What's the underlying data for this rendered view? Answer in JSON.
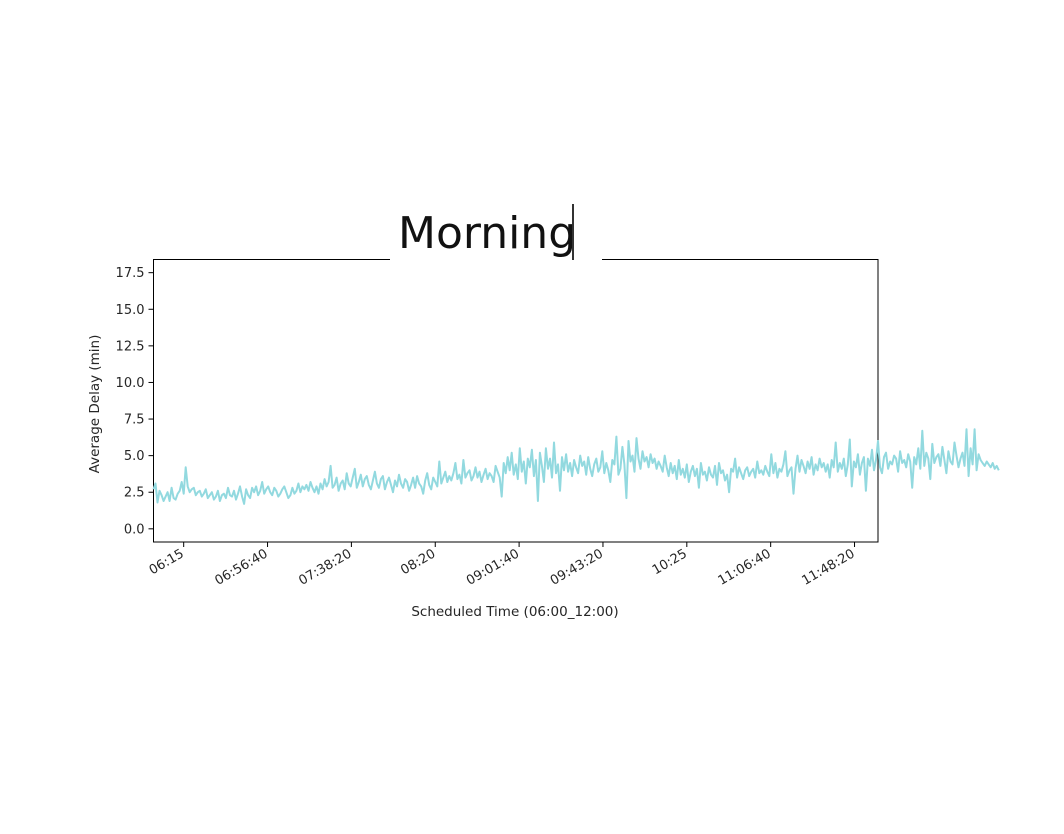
{
  "title_editor": {
    "text": "Morning"
  },
  "chart_data": {
    "type": "line",
    "title": "Morning",
    "xlabel": "Scheduled Time (06:00_12:00)",
    "ylabel": "Average Delay (min)",
    "xlim": [
      "06:00",
      "12:00"
    ],
    "ylim": [
      -0.9,
      18.4
    ],
    "x_ticks": [
      "06:15",
      "06:56:40",
      "07:38:20",
      "08:20",
      "09:01:40",
      "09:43:20",
      "10:25",
      "11:06:40",
      "11:48:20"
    ],
    "y_ticks": [
      "0.0",
      "2.5",
      "5.0",
      "7.5",
      "10.0",
      "12.5",
      "15.0",
      "17.5"
    ],
    "line_color": "#92d9df",
    "grid": false,
    "x_interval_minutes": 1,
    "series": [
      {
        "values": [
          2.7,
          3.1,
          1.8,
          2.6,
          2.3,
          1.9,
          2.2,
          2.5,
          1.9,
          2.8,
          2.1,
          2.0,
          2.4,
          2.6,
          3.2,
          2.4,
          4.2,
          2.9,
          2.5,
          2.7,
          2.8,
          2.3,
          2.5,
          2.6,
          2.2,
          2.4,
          2.7,
          2.1,
          2.3,
          2.5,
          2.0,
          2.2,
          2.6,
          1.9,
          2.3,
          2.4,
          2.1,
          2.8,
          2.3,
          2.2,
          2.6,
          2.0,
          2.4,
          2.9,
          2.2,
          1.7,
          2.7,
          2.3,
          2.1,
          2.8,
          2.5,
          2.9,
          2.3,
          2.6,
          3.2,
          2.4,
          2.7,
          2.9,
          2.5,
          2.3,
          2.8,
          2.6,
          2.2,
          2.4,
          2.7,
          2.9,
          2.5,
          2.1,
          2.3,
          2.8,
          2.4,
          2.6,
          3.1,
          2.5,
          2.9,
          2.7,
          3.0,
          2.6,
          3.2,
          2.8,
          2.5,
          2.9,
          2.4,
          3.1,
          2.7,
          3.4,
          2.9,
          3.2,
          4.3,
          2.8,
          3.0,
          3.5,
          2.6,
          3.1,
          3.3,
          2.7,
          3.8,
          3.1,
          2.9,
          3.5,
          4.1,
          2.8,
          3.2,
          3.7,
          2.9,
          3.4,
          3.6,
          3.0,
          2.7,
          3.3,
          3.9,
          3.1,
          2.8,
          3.4,
          3.6,
          2.7,
          3.2,
          3.5,
          3.0,
          2.5,
          3.3,
          2.9,
          3.7,
          3.1,
          2.8,
          3.4,
          3.2,
          2.6,
          3.0,
          3.5,
          2.8,
          3.6,
          3.1,
          2.9,
          2.4,
          3.3,
          3.8,
          3.0,
          2.7,
          3.5,
          3.2,
          2.9,
          4.6,
          3.1,
          3.5,
          3.9,
          3.2,
          3.6,
          3.3,
          3.8,
          4.5,
          3.4,
          3.7,
          3.1,
          4.7,
          3.5,
          3.8,
          4.0,
          3.3,
          3.6,
          4.2,
          3.5,
          3.9,
          3.2,
          3.7,
          4.1,
          3.4,
          3.8,
          3.6,
          3.2,
          4.3,
          3.9,
          3.5,
          2.2,
          4.5,
          3.8,
          4.9,
          4.0,
          5.2,
          3.7,
          4.4,
          3.4,
          5.5,
          3.9,
          4.6,
          3.1,
          4.8,
          4.2,
          5.4,
          3.6,
          4.7,
          1.9,
          5.2,
          4.3,
          3.2,
          5.5,
          4.1,
          4.8,
          3.5,
          5.9,
          3.8,
          4.4,
          2.6,
          4.9,
          4.0,
          5.1,
          3.9,
          4.5,
          3.6,
          4.7,
          4.2,
          3.8,
          5.0,
          4.3,
          4.6,
          3.7,
          4.9,
          4.1,
          3.6,
          4.4,
          4.8,
          3.9,
          4.2,
          5.3,
          3.8,
          4.5,
          4.0,
          3.2,
          4.7,
          4.4,
          6.3,
          3.7,
          4.1,
          5.6,
          4.4,
          2.1,
          6.0,
          4.6,
          5.0,
          3.9,
          6.2,
          4.8,
          4.1,
          5.3,
          4.6,
          4.9,
          4.2,
          5.1,
          4.5,
          4.8,
          4.1,
          4.6,
          4.3,
          3.9,
          5.0,
          4.2,
          3.6,
          4.5,
          3.8,
          4.3,
          3.4,
          4.7,
          3.7,
          4.1,
          3.5,
          4.4,
          3.2,
          3.9,
          4.3,
          3.6,
          4.1,
          2.8,
          4.5,
          3.7,
          3.9,
          3.3,
          4.2,
          3.7,
          3.5,
          4.3,
          3.0,
          4.5,
          3.8,
          4.0,
          3.3,
          3.7,
          2.5,
          4.1,
          3.9,
          4.8,
          3.5,
          4.2,
          3.8,
          3.4,
          4.0,
          4.2,
          3.6,
          3.9,
          4.1,
          3.5,
          4.6,
          3.8,
          4.0,
          3.7,
          4.3,
          3.9,
          3.6,
          5.1,
          3.8,
          4.5,
          3.5,
          4.1,
          3.9,
          4.4,
          5.3,
          3.6,
          4.0,
          4.2,
          2.4,
          4.1,
          5.0,
          3.9,
          4.7,
          4.3,
          3.8,
          4.6,
          4.1,
          4.9,
          3.7,
          4.4,
          4.0,
          4.8,
          4.2,
          4.5,
          3.9,
          4.4,
          3.5,
          4.7,
          4.2,
          5.9,
          3.9,
          4.5,
          4.1,
          4.8,
          3.6,
          4.4,
          6.1,
          2.9,
          4.6,
          4.2,
          5.1,
          3.7,
          4.5,
          4.9,
          2.6,
          4.8,
          4.3,
          5.4,
          4.0,
          4.7,
          6.0,
          4.2,
          3.8,
          4.9,
          5.2,
          4.1,
          4.6,
          4.4,
          5.0,
          4.8,
          3.9,
          5.3,
          4.5,
          4.7,
          4.2,
          5.1,
          4.6,
          2.8,
          4.9,
          4.4,
          5.5,
          4.1,
          6.7,
          4.3,
          5.2,
          4.8,
          3.4,
          5.8,
          4.5,
          4.9,
          5.1,
          4.3,
          5.6,
          4.7,
          3.8,
          5.3,
          4.6,
          4.4,
          5.9,
          5.0,
          4.2,
          4.8,
          5.2,
          4.3,
          6.8,
          3.6,
          5.5,
          4.4,
          6.8,
          4.0,
          5.1,
          4.7,
          4.5,
          4.3,
          4.6,
          4.4,
          4.2,
          4.5,
          4.1,
          4.3,
          4.0
        ]
      }
    ]
  }
}
